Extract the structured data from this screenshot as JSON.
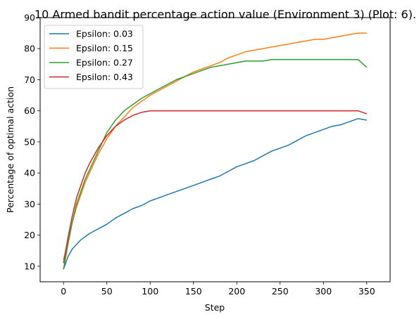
{
  "chart_data": {
    "type": "line",
    "title": "10 Armed bandit percentage action value (Environment 3) (Plot: 6).",
    "xlabel": "Step",
    "ylabel": "Percentage of optimal action",
    "xlim": [
      -27,
      377
    ],
    "ylim": [
      5,
      90
    ],
    "xticks": [
      0,
      50,
      100,
      150,
      200,
      250,
      300,
      350
    ],
    "yticks": [
      10,
      20,
      30,
      40,
      50,
      60,
      70,
      80,
      90
    ],
    "grid": false,
    "legend_position": "top-left",
    "series": [
      {
        "name": "Epsilon: 0.03",
        "color": "#1f77b4",
        "x": [
          0,
          5,
          10,
          15,
          20,
          25,
          30,
          40,
          50,
          60,
          70,
          80,
          90,
          100,
          110,
          120,
          130,
          140,
          150,
          160,
          170,
          180,
          190,
          200,
          210,
          220,
          230,
          240,
          250,
          260,
          270,
          280,
          290,
          300,
          310,
          320,
          330,
          340,
          350
        ],
        "y": [
          9,
          13,
          15.5,
          17,
          18.5,
          19.5,
          20.5,
          22,
          23.5,
          25.5,
          27,
          28.5,
          29.5,
          31,
          32,
          33,
          34,
          35,
          36,
          37,
          38,
          39,
          40.5,
          42,
          43,
          44,
          45.5,
          47,
          48,
          49,
          50.5,
          52,
          53,
          54,
          55,
          55.5,
          56.5,
          57.5,
          57
        ]
      },
      {
        "name": "Epsilon: 0.15",
        "color": "#ff7f0e",
        "x": [
          0,
          5,
          10,
          15,
          20,
          25,
          30,
          40,
          50,
          60,
          70,
          80,
          90,
          100,
          110,
          120,
          130,
          140,
          150,
          160,
          170,
          180,
          190,
          200,
          210,
          220,
          230,
          240,
          250,
          260,
          270,
          280,
          290,
          300,
          310,
          320,
          330,
          340,
          350
        ],
        "y": [
          12,
          18,
          24,
          29,
          33,
          37,
          40,
          46,
          51,
          55,
          58,
          61,
          63,
          65,
          66.5,
          68,
          69.5,
          71,
          72.5,
          73.5,
          74.5,
          75.5,
          77,
          78,
          79,
          79.5,
          80,
          80.5,
          81,
          81.5,
          82,
          82.5,
          83,
          83,
          83.5,
          84,
          84.5,
          85,
          85
        ]
      },
      {
        "name": "Epsilon: 0.27",
        "color": "#2ca02c",
        "x": [
          0,
          5,
          10,
          15,
          20,
          25,
          30,
          40,
          50,
          60,
          70,
          80,
          90,
          100,
          110,
          120,
          130,
          140,
          150,
          160,
          170,
          180,
          190,
          200,
          210,
          220,
          230,
          240,
          250,
          260,
          270,
          280,
          290,
          300,
          310,
          320,
          330,
          340,
          350
        ],
        "y": [
          9,
          17,
          24,
          30,
          34,
          38,
          41,
          47,
          53,
          57,
          60,
          62,
          64,
          65.5,
          67,
          68.5,
          70,
          71,
          72,
          73,
          74,
          74.5,
          75,
          75.5,
          76,
          76,
          76,
          76.5,
          76.5,
          76.5,
          76.5,
          76.5,
          76.5,
          76.5,
          76.5,
          76.5,
          76.5,
          76.5,
          74
        ]
      },
      {
        "name": "Epsilon: 0.43",
        "color": "#d62728",
        "x": [
          0,
          5,
          10,
          15,
          20,
          25,
          30,
          40,
          50,
          60,
          70,
          80,
          90,
          100,
          110,
          120,
          130,
          140,
          150,
          160,
          170,
          180,
          190,
          200,
          210,
          220,
          230,
          240,
          250,
          260,
          270,
          280,
          290,
          300,
          310,
          320,
          330,
          340,
          350
        ],
        "y": [
          11,
          19,
          26,
          32,
          36,
          40,
          43,
          48,
          52,
          55,
          57,
          58.5,
          59.5,
          60,
          60,
          60,
          60,
          60,
          60,
          60,
          60,
          60,
          60,
          60,
          60,
          60,
          60,
          60,
          60,
          60,
          60,
          60,
          60,
          60,
          60,
          60,
          60,
          60,
          59
        ]
      }
    ]
  }
}
